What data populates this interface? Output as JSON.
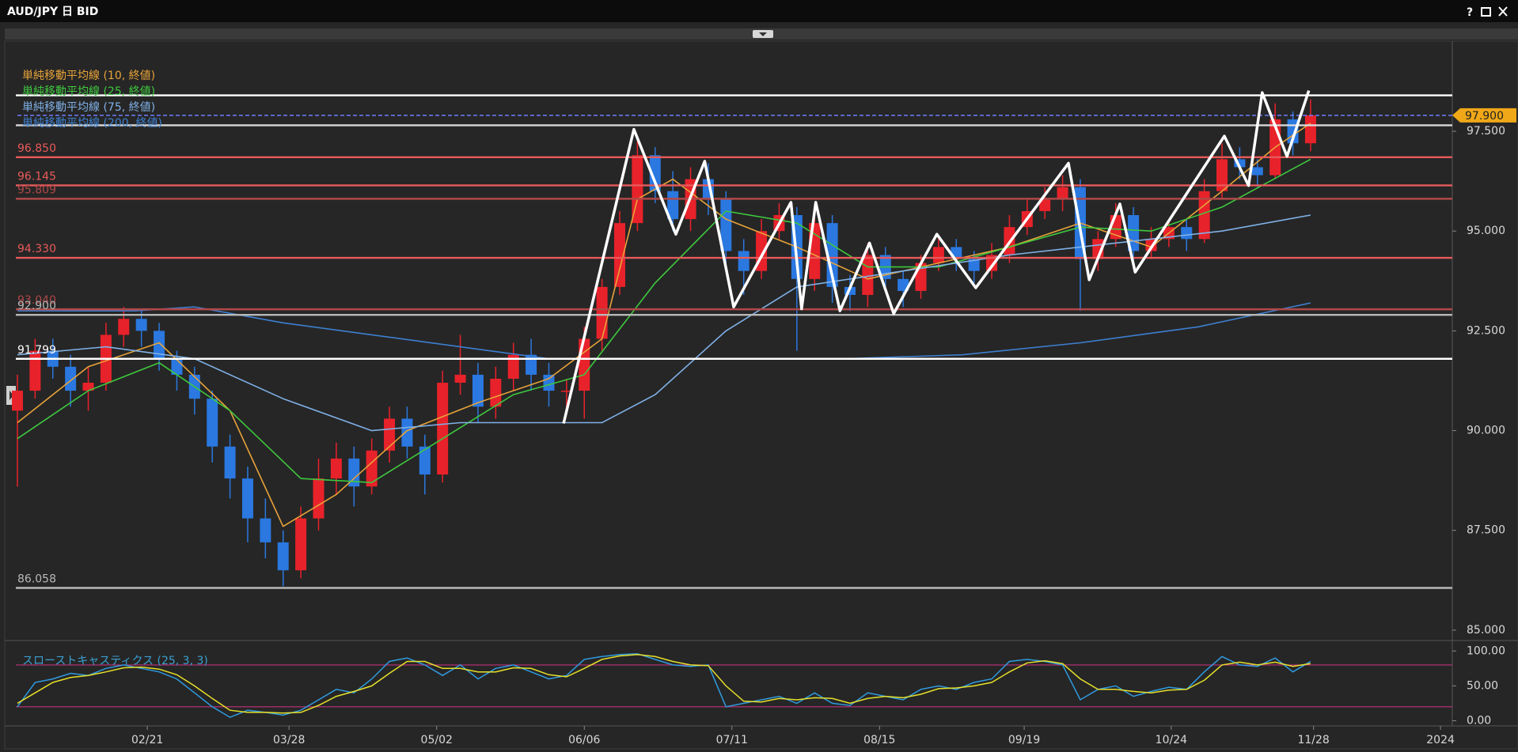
{
  "window": {
    "help": "?"
  },
  "chart_data": [
    {
      "type": "candlestick",
      "title": "AUD/JPY 日 BID",
      "x": [
        0,
        3,
        6,
        9,
        12,
        15,
        18,
        21,
        24,
        27,
        30,
        33,
        36,
        39,
        42,
        45,
        48,
        51,
        54,
        57,
        60,
        63,
        66,
        69,
        72,
        75,
        78,
        81,
        84,
        87,
        90,
        93,
        96,
        99,
        102,
        105,
        108,
        111,
        114,
        117,
        120,
        123,
        126,
        129,
        132,
        135,
        138,
        141,
        144,
        147,
        150,
        153,
        156,
        159,
        162,
        165,
        168,
        171,
        174,
        177,
        180,
        183,
        186,
        189,
        192,
        195,
        198,
        201,
        204,
        207,
        210,
        213,
        216,
        219
      ],
      "open": [
        90.5,
        91.0,
        92.0,
        91.6,
        91.0,
        91.2,
        92.4,
        92.8,
        92.5,
        91.8,
        91.4,
        90.8,
        89.6,
        88.8,
        87.8,
        87.2,
        86.5,
        87.8,
        88.8,
        89.3,
        88.6,
        89.5,
        90.3,
        89.6,
        88.9,
        91.2,
        91.4,
        90.6,
        91.3,
        91.9,
        91.4,
        91.0,
        91.0,
        92.3,
        93.6,
        95.2,
        96.9,
        96.0,
        95.3,
        96.3,
        95.8,
        94.5,
        94.0,
        95.0,
        95.4,
        93.8,
        95.2,
        93.6,
        93.4,
        94.4,
        93.8,
        93.5,
        94.2,
        94.6,
        94.3,
        94.0,
        94.4,
        95.1,
        95.5,
        95.8,
        96.1,
        94.3,
        94.8,
        95.4,
        94.5,
        94.8,
        95.1,
        94.8,
        96.0,
        96.8,
        96.6,
        96.4,
        97.8,
        97.2
      ],
      "high": [
        91.4,
        92.3,
        92.3,
        91.9,
        91.6,
        92.7,
        93.1,
        93.0,
        92.7,
        92.0,
        91.6,
        91.0,
        89.9,
        89.1,
        88.3,
        87.5,
        88.1,
        89.3,
        89.7,
        89.6,
        89.8,
        90.6,
        90.6,
        89.9,
        91.5,
        92.4,
        91.7,
        91.6,
        92.2,
        92.3,
        91.7,
        91.3,
        92.6,
        93.8,
        95.5,
        97.3,
        97.1,
        96.5,
        96.6,
        96.7,
        96.0,
        94.8,
        95.3,
        95.7,
        95.6,
        95.6,
        95.4,
        93.9,
        94.7,
        94.6,
        94.0,
        94.4,
        94.9,
        94.8,
        94.5,
        94.7,
        95.4,
        95.8,
        96.1,
        96.4,
        96.3,
        95.0,
        95.7,
        95.6,
        95.1,
        95.3,
        95.3,
        96.3,
        97.2,
        97.1,
        96.8,
        98.2,
        98.0,
        98.3
      ],
      "low": [
        88.6,
        90.8,
        91.3,
        90.6,
        90.5,
        91.0,
        92.1,
        92.1,
        91.5,
        91.0,
        90.4,
        89.2,
        88.3,
        87.2,
        86.8,
        86.1,
        86.3,
        87.5,
        88.4,
        88.1,
        88.4,
        89.2,
        89.3,
        88.4,
        88.7,
        90.9,
        90.2,
        90.3,
        91.0,
        91.0,
        90.6,
        90.4,
        90.3,
        92.0,
        93.4,
        95.0,
        95.7,
        95.0,
        95.0,
        95.4,
        94.2,
        93.4,
        93.8,
        94.8,
        92.0,
        93.5,
        93.2,
        93.0,
        93.1,
        93.5,
        93.1,
        93.3,
        94.0,
        94.0,
        93.7,
        93.8,
        94.2,
        94.9,
        95.3,
        95.5,
        93.0,
        94.0,
        94.6,
        94.2,
        94.3,
        94.6,
        94.5,
        94.7,
        95.8,
        96.3,
        96.1,
        96.3,
        96.9,
        97.0
      ],
      "close": [
        91.0,
        92.0,
        91.6,
        91.0,
        91.2,
        92.4,
        92.8,
        92.5,
        91.8,
        91.4,
        90.8,
        89.6,
        88.8,
        87.8,
        87.2,
        86.5,
        87.8,
        88.8,
        89.3,
        88.6,
        89.5,
        90.3,
        89.6,
        88.9,
        91.2,
        91.4,
        90.6,
        91.3,
        91.9,
        91.4,
        91.0,
        91.0,
        92.3,
        93.6,
        95.2,
        96.9,
        96.0,
        95.3,
        96.3,
        95.8,
        94.5,
        94.0,
        95.0,
        95.4,
        93.8,
        95.2,
        93.6,
        93.4,
        94.4,
        93.8,
        93.5,
        94.2,
        94.6,
        94.3,
        94.0,
        94.4,
        95.1,
        95.5,
        95.8,
        96.1,
        94.3,
        94.8,
        95.4,
        94.5,
        94.8,
        95.1,
        94.8,
        96.0,
        96.8,
        96.6,
        96.4,
        97.8,
        97.2,
        97.9
      ],
      "up_color": "#e8222a",
      "down_color": "#2a78e0",
      "xlim": [
        0,
        243
      ],
      "ylim": [
        84.8,
        99.7
      ],
      "yticks": [
        {
          "value": 85,
          "label": "85.000"
        },
        {
          "value": 87.5,
          "label": "87.500"
        },
        {
          "value": 90,
          "label": "90.000"
        },
        {
          "value": 92.5,
          "label": "92.500"
        },
        {
          "value": 95,
          "label": "95.000"
        },
        {
          "value": 97.5,
          "label": "97.500"
        }
      ],
      "current": {
        "value": 97.9,
        "label": "97.900",
        "color": "#f0a818"
      },
      "hlines": [
        {
          "value": 98.4,
          "color": "#ffffff"
        },
        {
          "value": 97.65,
          "color": "#d8d8d8"
        },
        {
          "value": 96.85,
          "label": "96.850",
          "color": "#e85a5a"
        },
        {
          "value": 96.145,
          "label": "96.145",
          "color": "#e85a5a"
        },
        {
          "value": 95.809,
          "label": "95.809",
          "color": "#b04848"
        },
        {
          "value": 94.33,
          "label": "94.330",
          "color": "#e85a5a"
        },
        {
          "value": 93.04,
          "label": "93.040",
          "color": "#b04848"
        },
        {
          "value": 92.9,
          "label": "92.900",
          "color": "#b8b8b8"
        },
        {
          "value": 91.799,
          "label": "91.799",
          "color": "#ffffff"
        },
        {
          "value": 86.058,
          "label": "86.058",
          "color": "#b8b8b8"
        }
      ],
      "overlays": [
        {
          "name": "単純移動平均線 (10, 終値)",
          "color": "#e8a33a",
          "x": [
            0,
            12,
            24,
            36,
            45,
            54,
            66,
            78,
            90,
            99,
            105,
            111,
            120,
            132,
            144,
            156,
            168,
            180,
            192,
            204,
            213,
            219
          ],
          "values": [
            90.2,
            91.6,
            92.2,
            90.5,
            87.6,
            88.4,
            90.0,
            90.7,
            91.3,
            92.3,
            95.8,
            96.3,
            95.3,
            94.6,
            93.8,
            94.2,
            94.6,
            95.2,
            94.6,
            96.0,
            97.1,
            97.7
          ]
        },
        {
          "name": "単純移動平均線 (25, 終値)",
          "color": "#3ec83e",
          "x": [
            0,
            12,
            24,
            36,
            48,
            60,
            72,
            84,
            96,
            108,
            120,
            132,
            144,
            156,
            168,
            180,
            192,
            204,
            219
          ],
          "values": [
            89.8,
            91.0,
            91.7,
            90.5,
            88.8,
            88.7,
            89.8,
            90.9,
            91.4,
            93.7,
            95.5,
            95.2,
            94.1,
            94.1,
            94.6,
            95.1,
            95.0,
            95.6,
            96.8
          ]
        },
        {
          "name": "単純移動平均線 (75, 終値)",
          "color": "#7fb0e6",
          "x": [
            0,
            15,
            30,
            45,
            60,
            75,
            90,
            99,
            108,
            120,
            132,
            150,
            168,
            180,
            192,
            204,
            219
          ],
          "values": [
            91.9,
            92.1,
            91.8,
            90.8,
            90.0,
            90.2,
            90.2,
            90.2,
            90.9,
            92.5,
            93.6,
            94.0,
            94.4,
            94.6,
            94.8,
            95.0,
            95.4
          ]
        },
        {
          "name": "単純移動平均線 (200, 終値)",
          "color": "#3d7fd0",
          "x": [
            0,
            20,
            30,
            45,
            60,
            75,
            90,
            100,
            120,
            140,
            160,
            180,
            200,
            219
          ],
          "values": [
            93.0,
            93.0,
            93.1,
            92.7,
            92.4,
            92.1,
            91.8,
            91.8,
            91.8,
            91.8,
            91.9,
            92.2,
            92.6,
            93.2
          ]
        }
      ],
      "zigzag": {
        "color": "#ffffff",
        "x": [
          92.5,
          104.4,
          111.5,
          116.4,
          121.3,
          131,
          132.8,
          135.2,
          139.3,
          144.3,
          148.4,
          155.7,
          162.3,
          178,
          181.5,
          186.7,
          189.3,
          204.4,
          208.5,
          210.8,
          215,
          218.7
        ],
        "values": [
          90.18,
          97.55,
          94.92,
          96.75,
          93.1,
          95.72,
          93.05,
          95.72,
          93.0,
          94.7,
          92.93,
          94.92,
          93.58,
          96.7,
          93.78,
          95.68,
          93.97,
          97.38,
          96.14,
          98.47,
          96.87,
          98.52
        ]
      },
      "legend": "top-left"
    },
    {
      "type": "line",
      "title": "スローストキャスティクス (25, 3, 3)",
      "title_color": "#3aa0d0",
      "x": [
        0,
        3,
        6,
        9,
        12,
        15,
        18,
        21,
        24,
        27,
        30,
        33,
        36,
        39,
        42,
        45,
        48,
        51,
        54,
        57,
        60,
        63,
        66,
        69,
        72,
        75,
        78,
        81,
        84,
        87,
        90,
        93,
        96,
        99,
        102,
        105,
        108,
        111,
        114,
        117,
        120,
        123,
        126,
        129,
        132,
        135,
        138,
        141,
        144,
        147,
        150,
        153,
        156,
        159,
        162,
        165,
        168,
        171,
        174,
        177,
        180,
        183,
        186,
        189,
        192,
        195,
        198,
        201,
        204,
        207,
        210,
        213,
        216,
        219
      ],
      "series": [
        {
          "color": "#2f9be0",
          "values": [
            20,
            55,
            60,
            68,
            65,
            75,
            80,
            75,
            70,
            60,
            40,
            20,
            5,
            15,
            12,
            8,
            15,
            30,
            45,
            40,
            60,
            85,
            90,
            80,
            65,
            80,
            60,
            75,
            80,
            70,
            60,
            65,
            88,
            92,
            95,
            96,
            88,
            80,
            78,
            80,
            20,
            25,
            30,
            35,
            25,
            40,
            25,
            22,
            40,
            35,
            30,
            45,
            50,
            45,
            55,
            60,
            85,
            88,
            85,
            80,
            30,
            45,
            50,
            35,
            42,
            48,
            45,
            70,
            92,
            80,
            78,
            90,
            70,
            85
          ]
        },
        {
          "color": "#e6e02a",
          "values": [
            25,
            40,
            55,
            62,
            65,
            70,
            76,
            77,
            74,
            66,
            50,
            32,
            15,
            12,
            12,
            11,
            12,
            22,
            35,
            42,
            50,
            68,
            85,
            85,
            75,
            75,
            70,
            70,
            76,
            75,
            66,
            63,
            75,
            88,
            93,
            95,
            92,
            85,
            80,
            79,
            50,
            28,
            27,
            32,
            30,
            33,
            32,
            25,
            32,
            35,
            33,
            38,
            46,
            47,
            50,
            55,
            70,
            83,
            86,
            82,
            60,
            45,
            45,
            42,
            40,
            44,
            45,
            58,
            80,
            84,
            80,
            84,
            78,
            82
          ]
        }
      ],
      "hlines": [
        {
          "value": 80,
          "color": "#c0307a"
        },
        {
          "value": 20,
          "color": "#c0307a"
        }
      ],
      "xlim": [
        0,
        243
      ],
      "ylim": [
        -4,
        106
      ],
      "yticks": [
        {
          "value": 0,
          "label": "0.00"
        },
        {
          "value": 50,
          "label": "50.00"
        },
        {
          "value": 100,
          "label": "100.00"
        }
      ],
      "xticks": [
        {
          "value": 22,
          "label": "02/21"
        },
        {
          "value": 46,
          "label": "03/28"
        },
        {
          "value": 71,
          "label": "05/02"
        },
        {
          "value": 96,
          "label": "06/06"
        },
        {
          "value": 121,
          "label": "07/11"
        },
        {
          "value": 146,
          "label": "08/15"
        },
        {
          "value": 170.5,
          "label": "09/19"
        },
        {
          "value": 195.4,
          "label": "10/24"
        },
        {
          "value": 219.5,
          "label": "11/28"
        },
        {
          "value": 241,
          "label": "2024"
        }
      ]
    }
  ]
}
